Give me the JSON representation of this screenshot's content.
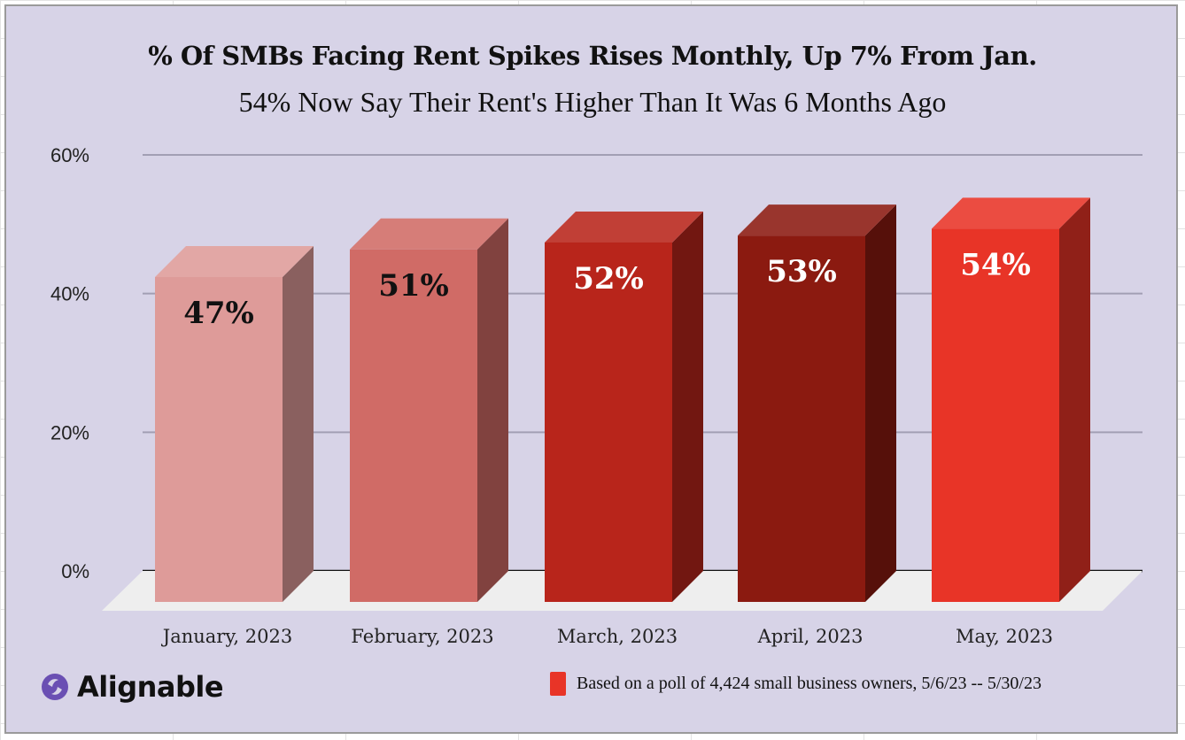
{
  "chart_data": {
    "type": "bar",
    "style": "3d-column",
    "title": "% Of SMBs Facing Rent Spikes Rises Monthly, Up 7% From Jan.",
    "subtitle": "54% Now Say Their Rent's Higher Than It Was 6 Months Ago",
    "xlabel": "",
    "ylabel": "",
    "ylim": [
      0,
      60
    ],
    "yticks": [
      0,
      20,
      40,
      60
    ],
    "ytick_labels": [
      "0%",
      "20%",
      "40%",
      "60%"
    ],
    "grid": true,
    "categories": [
      "January, 2023",
      "February, 2023",
      "March, 2023",
      "April, 2023",
      "May, 2023"
    ],
    "values": [
      47,
      51,
      52,
      53,
      54
    ],
    "data_labels": [
      "47%",
      "51%",
      "52%",
      "53%",
      "54%"
    ],
    "bar_colors": [
      "#de9b99",
      "#d06b66",
      "#b8251b",
      "#8b1a10",
      "#e83427"
    ],
    "label_colors": [
      "#111111",
      "#111111",
      "#ffffff",
      "#ffffff",
      "#ffffff"
    ],
    "legend": {
      "placement": "bottom-right",
      "entries": [
        {
          "label": "Based on a poll of 4,424 small business owners, 5/6/23 -- 5/30/23",
          "color": "#e83427"
        }
      ]
    }
  },
  "branding": {
    "logo_text": "Alignable",
    "logo_color": "#6a4fb3"
  },
  "colors": {
    "background": "#d7d3e7",
    "gridline": "#a29fb4",
    "floor": "#eeeeee"
  }
}
